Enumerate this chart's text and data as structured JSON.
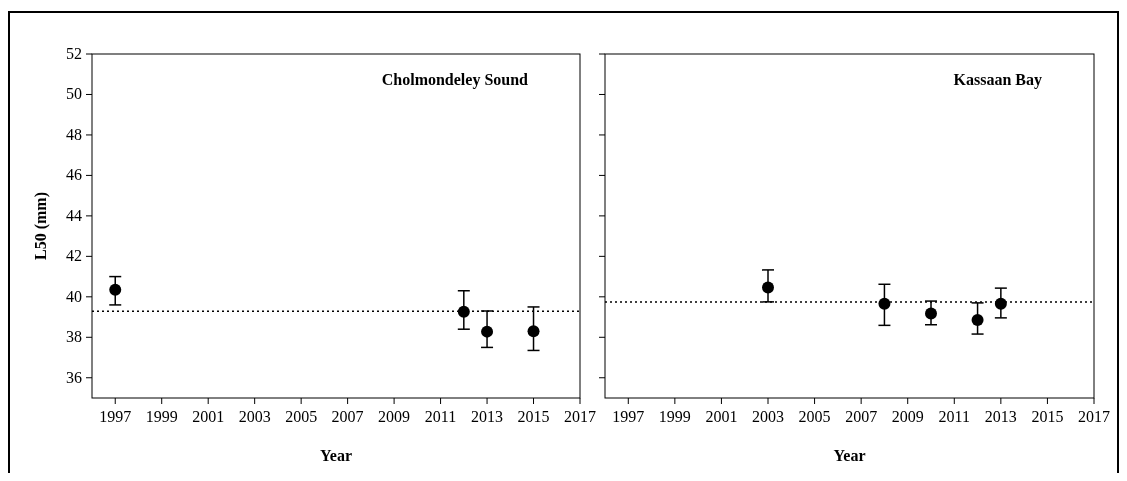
{
  "chart_data": [
    {
      "type": "scatter",
      "title": "Cholmondeley Sound",
      "xlabel": "Year",
      "ylabel": "L50 (mm)",
      "xlim": [
        1996,
        2017
      ],
      "xticks": [
        1997,
        1999,
        2001,
        2003,
        2005,
        2007,
        2009,
        2011,
        2013,
        2015,
        2017
      ],
      "ylim": [
        35,
        52
      ],
      "yticks": [
        36,
        38,
        40,
        42,
        44,
        46,
        48,
        50,
        52
      ],
      "marker": "circle",
      "grid": false,
      "series": [
        {
          "color": "#000000",
          "x": [
            1997,
            2012,
            2013,
            2015
          ],
          "values": [
            40.35,
            39.26,
            38.28,
            38.3
          ],
          "errors": [
            [
              39.6,
              41.0
            ],
            [
              38.4,
              40.3
            ],
            [
              37.5,
              39.3
            ],
            [
              37.35,
              39.5
            ]
          ]
        }
      ],
      "ref_lines": [
        {
          "axis": "y",
          "value": 39.29,
          "line_style": "dotted",
          "color": "#000000"
        }
      ]
    },
    {
      "type": "scatter",
      "title": "Kassaan Bay",
      "xlabel": "Year",
      "xlim": [
        1996,
        2017
      ],
      "xticks": [
        1997,
        1999,
        2001,
        2003,
        2005,
        2007,
        2009,
        2011,
        2013,
        2015,
        2017
      ],
      "ylim": [
        35,
        52
      ],
      "yticks": [
        36,
        38,
        40,
        42,
        44,
        46,
        48,
        50,
        52
      ],
      "tick_labels": "x",
      "marker": "circle",
      "grid": false,
      "series": [
        {
          "color": "#000000",
          "x": [
            2003,
            2008,
            2010,
            2012,
            2013
          ],
          "values": [
            40.46,
            39.66,
            39.18,
            38.85,
            39.66
          ],
          "errors": [
            [
              39.75,
              41.33
            ],
            [
              38.59,
              40.62
            ],
            [
              38.62,
              39.79
            ],
            [
              38.16,
              39.7
            ],
            [
              38.96,
              40.43
            ]
          ]
        }
      ],
      "ref_lines": [
        {
          "axis": "y",
          "value": 39.75,
          "line_style": "dotted",
          "color": "#000000"
        }
      ]
    }
  ]
}
